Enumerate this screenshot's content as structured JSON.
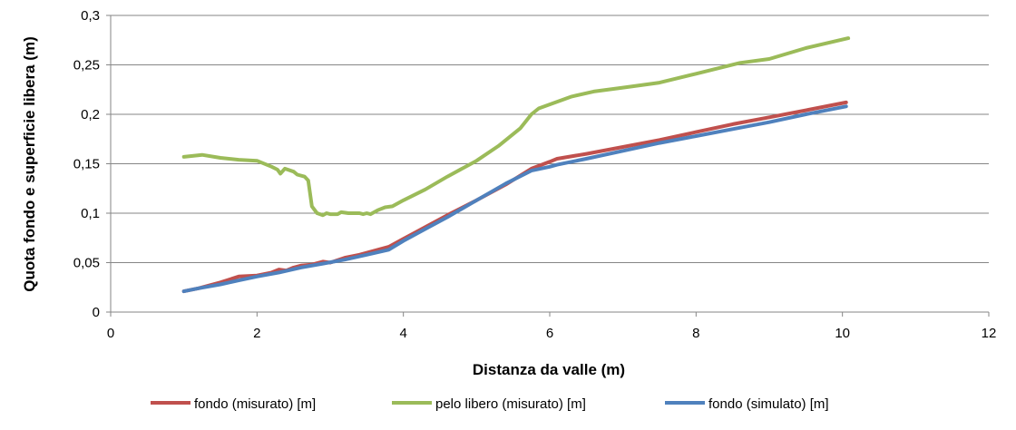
{
  "chart_data": {
    "type": "line",
    "title": "",
    "xlabel": "Distanza da valle (m)",
    "ylabel": "Quota fondo e superficie libera (m)",
    "xlim": [
      0,
      12
    ],
    "ylim": [
      0,
      0.3
    ],
    "x_ticks": [
      0,
      2,
      4,
      6,
      8,
      10,
      12
    ],
    "x_tick_labels": [
      "0",
      "2",
      "4",
      "6",
      "8",
      "10",
      "12"
    ],
    "y_ticks": [
      0,
      0.05,
      0.1,
      0.15,
      0.2,
      0.25,
      0.3
    ],
    "y_tick_labels": [
      "0",
      "0,05",
      "0,1",
      "0,15",
      "0,2",
      "0,25",
      "0,3"
    ],
    "grid": "horizontal",
    "legend_position": "bottom",
    "series": [
      {
        "name": "fondo (misurato) [m]",
        "color": "#c0504d",
        "points": [
          [
            1.0,
            0.021
          ],
          [
            1.2,
            0.024
          ],
          [
            1.5,
            0.03
          ],
          [
            1.75,
            0.036
          ],
          [
            2.0,
            0.037
          ],
          [
            2.2,
            0.04
          ],
          [
            2.3,
            0.043
          ],
          [
            2.4,
            0.042
          ],
          [
            2.5,
            0.045
          ],
          [
            2.6,
            0.047
          ],
          [
            2.75,
            0.048
          ],
          [
            2.9,
            0.051
          ],
          [
            3.0,
            0.05
          ],
          [
            3.2,
            0.055
          ],
          [
            3.4,
            0.058
          ],
          [
            3.6,
            0.062
          ],
          [
            3.8,
            0.066
          ],
          [
            4.0,
            0.074
          ],
          [
            4.3,
            0.086
          ],
          [
            4.6,
            0.098
          ],
          [
            5.0,
            0.113
          ],
          [
            5.4,
            0.129
          ],
          [
            5.75,
            0.145
          ],
          [
            6.0,
            0.152
          ],
          [
            6.1,
            0.155
          ],
          [
            6.5,
            0.16
          ],
          [
            7.0,
            0.167
          ],
          [
            7.5,
            0.174
          ],
          [
            8.0,
            0.182
          ],
          [
            8.5,
            0.19
          ],
          [
            9.0,
            0.197
          ],
          [
            9.5,
            0.204
          ],
          [
            10.05,
            0.212
          ]
        ]
      },
      {
        "name": "pelo libero (misurato) [m]",
        "color": "#9bbb59",
        "points": [
          [
            1.0,
            0.157
          ],
          [
            1.25,
            0.159
          ],
          [
            1.5,
            0.156
          ],
          [
            1.75,
            0.154
          ],
          [
            2.0,
            0.153
          ],
          [
            2.2,
            0.147
          ],
          [
            2.28,
            0.144
          ],
          [
            2.32,
            0.14
          ],
          [
            2.38,
            0.145
          ],
          [
            2.5,
            0.142
          ],
          [
            2.55,
            0.139
          ],
          [
            2.65,
            0.137
          ],
          [
            2.7,
            0.133
          ],
          [
            2.75,
            0.107
          ],
          [
            2.82,
            0.1
          ],
          [
            2.9,
            0.098
          ],
          [
            2.95,
            0.1
          ],
          [
            3.0,
            0.099
          ],
          [
            3.1,
            0.099
          ],
          [
            3.15,
            0.101
          ],
          [
            3.25,
            0.1
          ],
          [
            3.4,
            0.1
          ],
          [
            3.45,
            0.099
          ],
          [
            3.5,
            0.1
          ],
          [
            3.55,
            0.099
          ],
          [
            3.65,
            0.103
          ],
          [
            3.75,
            0.106
          ],
          [
            3.85,
            0.107
          ],
          [
            4.0,
            0.113
          ],
          [
            4.3,
            0.124
          ],
          [
            4.6,
            0.137
          ],
          [
            5.0,
            0.153
          ],
          [
            5.3,
            0.168
          ],
          [
            5.6,
            0.186
          ],
          [
            5.75,
            0.2
          ],
          [
            5.85,
            0.206
          ],
          [
            6.0,
            0.21
          ],
          [
            6.3,
            0.218
          ],
          [
            6.6,
            0.223
          ],
          [
            7.0,
            0.227
          ],
          [
            7.5,
            0.232
          ],
          [
            8.0,
            0.241
          ],
          [
            8.6,
            0.252
          ],
          [
            9.0,
            0.256
          ],
          [
            9.5,
            0.267
          ],
          [
            10.08,
            0.277
          ]
        ]
      },
      {
        "name": "fondo (simulato) [m]",
        "color": "#4f81bd",
        "points": [
          [
            1.0,
            0.021
          ],
          [
            1.2,
            0.024
          ],
          [
            1.5,
            0.028
          ],
          [
            1.75,
            0.032
          ],
          [
            2.0,
            0.036
          ],
          [
            2.3,
            0.04
          ],
          [
            2.6,
            0.045
          ],
          [
            2.9,
            0.049
          ],
          [
            3.2,
            0.053
          ],
          [
            3.5,
            0.058
          ],
          [
            3.8,
            0.063
          ],
          [
            4.0,
            0.072
          ],
          [
            4.3,
            0.084
          ],
          [
            4.6,
            0.096
          ],
          [
            5.0,
            0.113
          ],
          [
            5.4,
            0.13
          ],
          [
            5.75,
            0.143
          ],
          [
            6.0,
            0.147
          ],
          [
            6.1,
            0.149
          ],
          [
            6.5,
            0.155
          ],
          [
            7.0,
            0.163
          ],
          [
            7.5,
            0.171
          ],
          [
            8.0,
            0.178
          ],
          [
            8.5,
            0.185
          ],
          [
            9.0,
            0.192
          ],
          [
            9.5,
            0.2
          ],
          [
            10.05,
            0.208
          ]
        ]
      }
    ]
  }
}
